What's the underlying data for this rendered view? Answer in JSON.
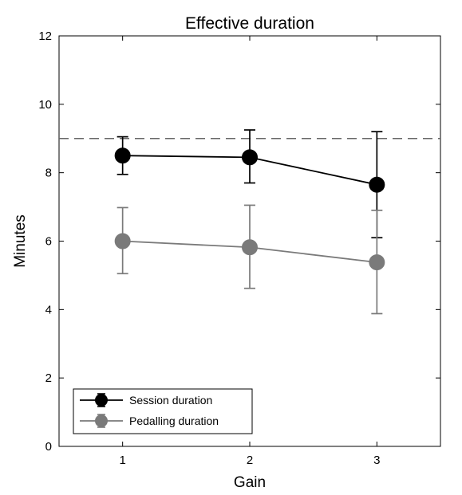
{
  "chart_data": {
    "type": "line",
    "title": "Effective duration",
    "xlabel": "Gain",
    "ylabel": "Minutes",
    "xlim": [
      0.5,
      3.5
    ],
    "ylim": [
      0,
      12
    ],
    "x_ticks": [
      1,
      2,
      3
    ],
    "y_ticks": [
      0,
      2,
      4,
      6,
      8,
      10,
      12
    ],
    "grid": false,
    "legend_position": "bottom-left",
    "reference_line": {
      "y": 9,
      "style": "dashed",
      "color": "#666666"
    },
    "series": [
      {
        "name": "Session duration",
        "color": "#000000",
        "x": [
          1,
          2,
          3
        ],
        "y": [
          8.5,
          8.45,
          7.65
        ],
        "error_low": [
          7.95,
          7.7,
          6.1
        ],
        "error_high": [
          9.05,
          9.25,
          9.2
        ]
      },
      {
        "name": "Pedalling duration",
        "color": "#7a7a7a",
        "x": [
          1,
          2,
          3
        ],
        "y": [
          6.0,
          5.82,
          5.38
        ],
        "error_low": [
          5.05,
          4.62,
          3.88
        ],
        "error_high": [
          6.98,
          7.05,
          6.9
        ]
      }
    ]
  }
}
